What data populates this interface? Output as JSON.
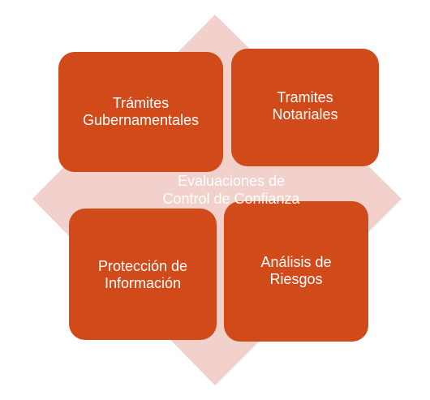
{
  "colors": {
    "box_fill": "#D04A1A",
    "background_shape": "#F2D0CC",
    "text": "#FFFFFF"
  },
  "center": {
    "label": "Evaluaciones de\nControl de Confianza"
  },
  "quadrants": {
    "top_left": "Trámites\nGubernamentales",
    "top_right": "Tramites\nNotariales",
    "bottom_left": "Protección de\nInformación",
    "bottom_right": "Análisis de\nRiesgos"
  }
}
